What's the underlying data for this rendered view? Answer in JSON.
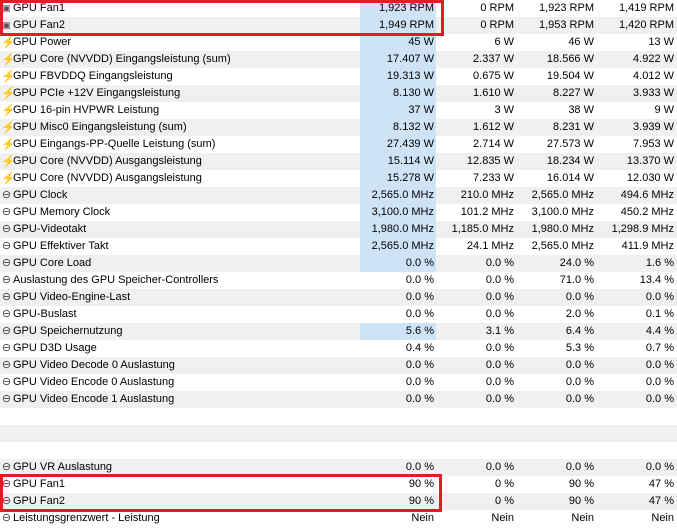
{
  "colors": {
    "bar": "#cfe3f7",
    "highlight": "#e01c24",
    "alt_row": "#f0f0f0"
  },
  "rows": [
    {
      "icon": "fan-icon",
      "name": "GPU Fan1",
      "v1": "1,923 RPM",
      "v2": "0 RPM",
      "v3": "1,923 RPM",
      "v4": "1,419 RPM",
      "bar": 1.0
    },
    {
      "icon": "fan-icon",
      "name": "GPU Fan2",
      "v1": "1,949 RPM",
      "v2": "0 RPM",
      "v3": "1,953 RPM",
      "v4": "1,420 RPM",
      "bar": 1.0
    },
    {
      "icon": "bolt-icon",
      "name": "GPU Power",
      "v1": "45 W",
      "v2": "6 W",
      "v3": "46 W",
      "v4": "13 W",
      "bar": 1.0
    },
    {
      "icon": "bolt-icon",
      "name": "GPU Core (NVVDD) Eingangsleistung (sum)",
      "v1": "17.407 W",
      "v2": "2.337 W",
      "v3": "18.566 W",
      "v4": "4.922 W",
      "bar": 1.0
    },
    {
      "icon": "bolt-icon",
      "name": "GPU FBVDDQ Eingangsleistung",
      "v1": "19.313 W",
      "v2": "0.675 W",
      "v3": "19.504 W",
      "v4": "4.012 W",
      "bar": 1.0
    },
    {
      "icon": "bolt-icon",
      "name": "GPU PCIe +12V Eingangsleistung",
      "v1": "8.130 W",
      "v2": "1.610 W",
      "v3": "8.227 W",
      "v4": "3.933 W",
      "bar": 1.0
    },
    {
      "icon": "bolt-icon",
      "name": "GPU 16-pin HVPWR Leistung",
      "v1": "37 W",
      "v2": "3 W",
      "v3": "38 W",
      "v4": "9 W",
      "bar": 1.0
    },
    {
      "icon": "bolt-icon",
      "name": "GPU Misc0 Eingangsleistung (sum)",
      "v1": "8.132 W",
      "v2": "1.612 W",
      "v3": "8.231 W",
      "v4": "3.939 W",
      "bar": 1.0
    },
    {
      "icon": "bolt-icon",
      "name": "GPU Eingangs-PP-Quelle Leistung (sum)",
      "v1": "27.439 W",
      "v2": "2.714 W",
      "v3": "27.573 W",
      "v4": "7.953 W",
      "bar": 1.0
    },
    {
      "icon": "bolt-icon",
      "name": "GPU Core (NVVDD) Ausgangsleistung",
      "v1": "15.114 W",
      "v2": "12.835 W",
      "v3": "18.234 W",
      "v4": "13.370 W",
      "bar": 1.0
    },
    {
      "icon": "bolt-icon",
      "name": "GPU Core (NVVDD) Ausgangsleistung",
      "v1": "15.278 W",
      "v2": "7.233 W",
      "v3": "16.014 W",
      "v4": "12.030 W",
      "bar": 1.0
    },
    {
      "icon": "gauge-icon",
      "name": "GPU Clock",
      "v1": "2,565.0 MHz",
      "v2": "210.0 MHz",
      "v3": "2,565.0 MHz",
      "v4": "494.6 MHz",
      "bar": 1.0
    },
    {
      "icon": "gauge-icon",
      "name": "GPU Memory Clock",
      "v1": "3,100.0 MHz",
      "v2": "101.2 MHz",
      "v3": "3,100.0 MHz",
      "v4": "450.2 MHz",
      "bar": 1.0
    },
    {
      "icon": "gauge-icon",
      "name": "GPU-Videotakt",
      "v1": "1,980.0 MHz",
      "v2": "1,185.0 MHz",
      "v3": "1,980.0 MHz",
      "v4": "1,298.9 MHz",
      "bar": 1.0
    },
    {
      "icon": "gauge-icon",
      "name": "GPU Effektiver Takt",
      "v1": "2,565.0 MHz",
      "v2": "24.1 MHz",
      "v3": "2,565.0 MHz",
      "v4": "411.9 MHz",
      "bar": 1.0
    },
    {
      "icon": "gauge-icon",
      "name": "GPU Core Load",
      "v1": "0.0 %",
      "v2": "0.0 %",
      "v3": "24.0 %",
      "v4": "1.6 %",
      "bar": 1.0
    },
    {
      "icon": "gauge-icon",
      "name": "Auslastung des GPU Speicher-Controllers",
      "v1": "0.0 %",
      "v2": "0.0 %",
      "v3": "71.0 %",
      "v4": "13.4 %",
      "bar": 0
    },
    {
      "icon": "gauge-icon",
      "name": "GPU Video-Engine-Last",
      "v1": "0.0 %",
      "v2": "0.0 %",
      "v3": "0.0 %",
      "v4": "0.0 %",
      "bar": 0
    },
    {
      "icon": "gauge-icon",
      "name": "GPU-Buslast",
      "v1": "0.0 %",
      "v2": "0.0 %",
      "v3": "2.0 %",
      "v4": "0.1 %",
      "bar": 0
    },
    {
      "icon": "gauge-icon",
      "name": "GPU Speichernutzung",
      "v1": "5.6 %",
      "v2": "3.1 %",
      "v3": "6.4 %",
      "v4": "4.4 %",
      "bar": 1.0
    },
    {
      "icon": "gauge-icon",
      "name": "GPU D3D Usage",
      "v1": "0.4 %",
      "v2": "0.0 %",
      "v3": "5.3 %",
      "v4": "0.7 %",
      "bar": 0
    },
    {
      "icon": "gauge-icon",
      "name": "GPU Video Decode 0 Auslastung",
      "v1": "0.0 %",
      "v2": "0.0 %",
      "v3": "0.0 %",
      "v4": "0.0 %",
      "bar": 0
    },
    {
      "icon": "gauge-icon",
      "name": "GPU Video Encode 0 Auslastung",
      "v1": "0.0 %",
      "v2": "0.0 %",
      "v3": "0.0 %",
      "v4": "0.0 %",
      "bar": 0
    },
    {
      "icon": "gauge-icon",
      "name": "GPU Video Encode 1 Auslastung",
      "v1": "0.0 %",
      "v2": "0.0 %",
      "v3": "0.0 %",
      "v4": "0.0 %",
      "bar": 0
    },
    {
      "blank": true
    },
    {
      "blank": true
    },
    {
      "blank": true
    },
    {
      "icon": "gauge-icon",
      "name": "GPU VR Auslastung",
      "v1": "0.0 %",
      "v2": "0.0 %",
      "v3": "0.0 %",
      "v4": "0.0 %",
      "bar": 0
    },
    {
      "icon": "gauge-icon",
      "name": "GPU Fan1",
      "v1": "90 %",
      "v2": "0 %",
      "v3": "90 %",
      "v4": "47 %",
      "bar": 0
    },
    {
      "icon": "gauge-icon",
      "name": "GPU Fan2",
      "v1": "90 %",
      "v2": "0 %",
      "v3": "90 %",
      "v4": "47 %",
      "bar": 0
    },
    {
      "icon": "gauge-icon",
      "name": "Leistungsgrenzwert - Leistung",
      "v1": "Nein",
      "v2": "Nein",
      "v3": "Nein",
      "v4": "Nein",
      "bar": 0
    }
  ]
}
